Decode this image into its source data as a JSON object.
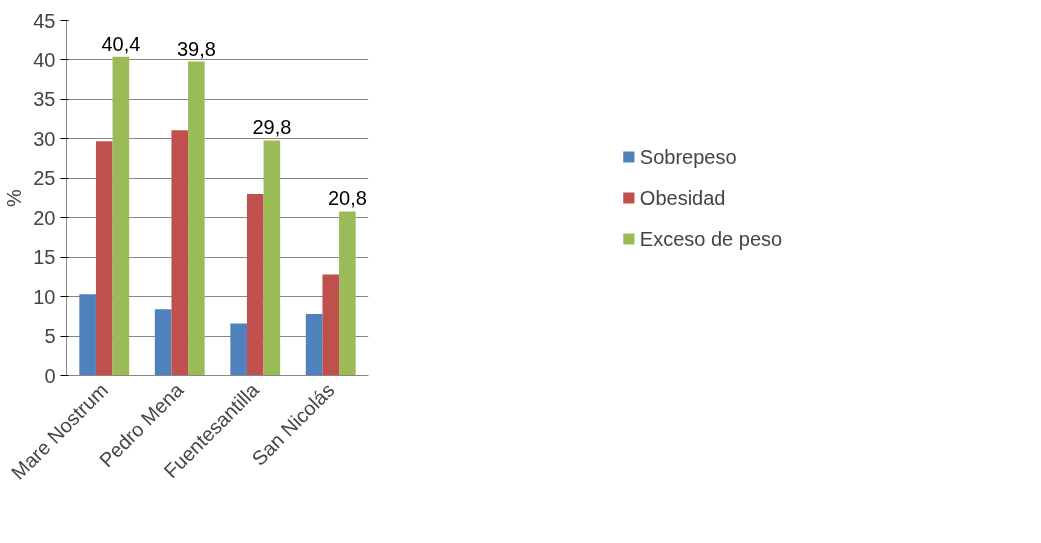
{
  "chart_data": {
    "type": "bar",
    "ylabel": "%",
    "categories": [
      "Mare Nostrum",
      "Pedro Mena",
      "Fuentesantilla",
      "San Nicolás"
    ],
    "series": [
      {
        "name": "Sobrepeso",
        "color": "#4f81bd",
        "values": [
          10.3,
          8.4,
          6.6,
          7.8
        ]
      },
      {
        "name": "Obesidad",
        "color": "#c0504d",
        "values": [
          29.7,
          31.1,
          23.0,
          12.8
        ]
      },
      {
        "name": "Exceso de peso",
        "color": "#9bbb59",
        "values": [
          40.4,
          39.8,
          29.8,
          20.8
        ],
        "value_labels": [
          "40,4",
          "39,8",
          "29,8",
          "20,8"
        ]
      }
    ],
    "ylim": [
      0,
      45
    ],
    "yticks": [
      0,
      5,
      10,
      15,
      20,
      25,
      30,
      35,
      40,
      45
    ],
    "grid": "y",
    "legend": "right"
  }
}
